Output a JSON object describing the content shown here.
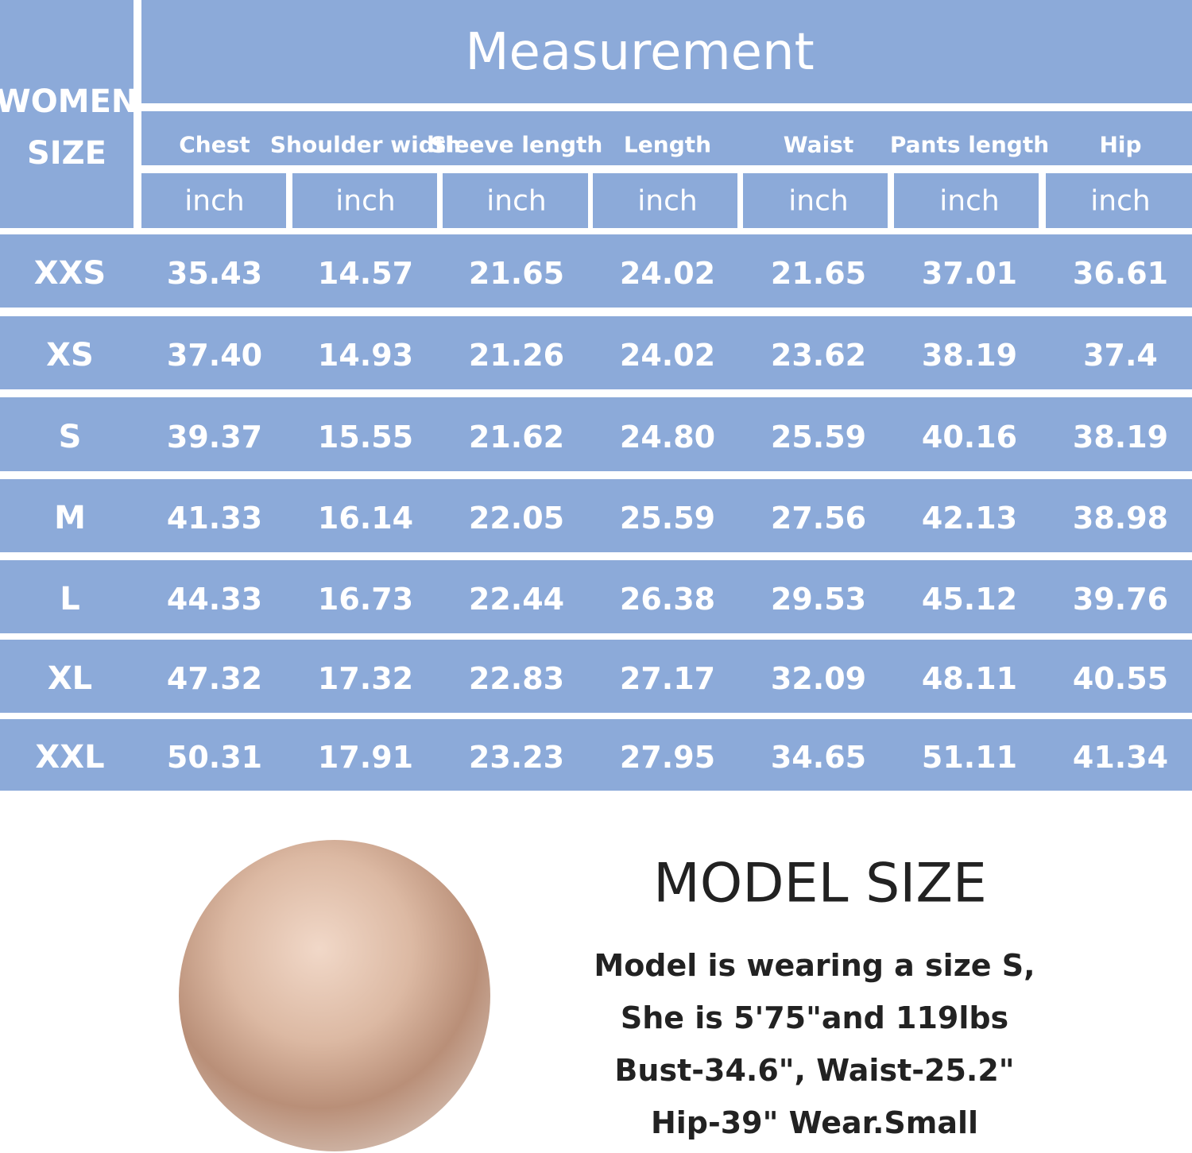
{
  "header": {
    "size_label": [
      "WOMEN",
      "SIZE"
    ],
    "title": "Measurement"
  },
  "table": {
    "columns": [
      "Chest",
      "Shoulder width",
      "Sleeve length",
      "Length",
      "Waist",
      "Pants length",
      "Hip"
    ],
    "units": [
      "inch",
      "inch",
      "inch",
      "inch",
      "inch",
      "inch",
      "inch"
    ],
    "rows": [
      [
        "XXS",
        "35.43",
        "14.57",
        "21.65",
        "24.02",
        "21.65",
        "37.01",
        "36.61"
      ],
      [
        "XS",
        "37.40",
        "14.93",
        "21.26",
        "24.02",
        "23.62",
        "38.19",
        "37.4"
      ],
      [
        "S",
        "39.37",
        "15.55",
        "21.62",
        "24.80",
        "25.59",
        "40.16",
        "38.19"
      ],
      [
        "M",
        "41.33",
        "16.14",
        "22.05",
        "25.59",
        "27.56",
        "42.13",
        "38.98"
      ],
      [
        "L",
        "44.33",
        "16.73",
        "22.44",
        "26.38",
        "29.53",
        "45.12",
        "39.76"
      ],
      [
        "XL",
        "47.32",
        "17.32",
        "22.83",
        "27.17",
        "32.09",
        "48.11",
        "40.55"
      ],
      [
        "XXL",
        "50.31",
        "17.91",
        "23.23",
        "27.95",
        "34.65",
        "51.11",
        "41.34"
      ]
    ]
  },
  "model": {
    "title": "MODEL SIZE",
    "lines": [
      "Model is wearing a size S,",
      "She is 5'75\"and 119lbs",
      "Bust-34.6\", Waist-25.2\"",
      "Hip-39\" Wear.Small"
    ]
  }
}
